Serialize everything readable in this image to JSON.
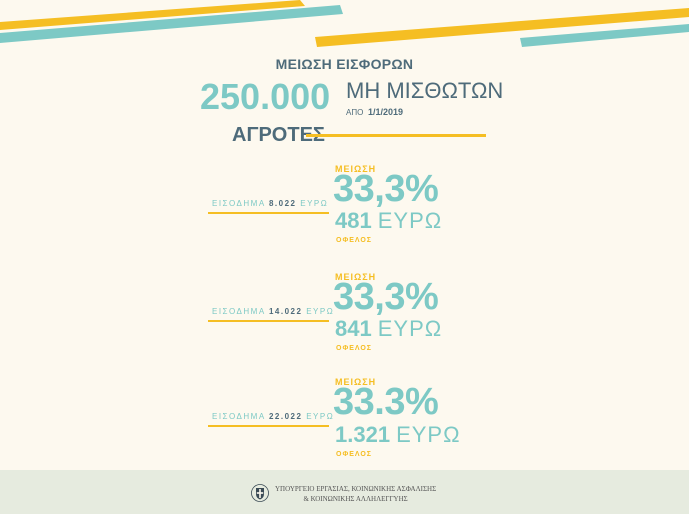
{
  "colors": {
    "teal": "#7dc9c5",
    "yellow": "#f5be23",
    "slate": "#4e6b7a",
    "background": "#fdf9ef",
    "footer": "#e6ebdf"
  },
  "header": {
    "title": "ΜΕΙΩΣΗ ΕΙΣΦΟΡΩΝ",
    "count": "250.000",
    "subtitle": "ΜΗ ΜΙΣΘΩΤΩΝ",
    "date_prefix": "ΑΠΟ",
    "date": "1/1/2019",
    "section": "ΑΓΡΟΤΕΣ"
  },
  "blocks": [
    {
      "reduction_label": "ΜΕΙΩΣΗ",
      "income_label": "ΕΙΣΟΔΗΜΑ",
      "income_value": "8.022",
      "income_unit": "ΕΥΡΩ",
      "percent": "33,3%",
      "amount": "481",
      "amount_unit": "ΕΥΡΩ",
      "benefit_label": "ΟΦΕΛΟΣ"
    },
    {
      "reduction_label": "ΜΕΙΩΣΗ",
      "income_label": "ΕΙΣΟΔΗΜΑ",
      "income_value": "14.022",
      "income_unit": "ΕΥΡΩ",
      "percent": "33,3%",
      "amount": "841",
      "amount_unit": "ΕΥΡΩ",
      "benefit_label": "ΟΦΕΛΟΣ"
    },
    {
      "reduction_label": "ΜΕΙΩΣΗ",
      "income_label": "ΕΙΣΟΔΗΜΑ",
      "income_value": "22.022",
      "income_unit": "ΕΥΡΩ",
      "percent": "33.3%",
      "amount": "1.321",
      "amount_unit": "ΕΥΡΩ",
      "benefit_label": "ΟΦΕΛΟΣ"
    }
  ],
  "footer": {
    "emblem_icon": "greek-coat-of-arms-icon",
    "ministry_line1": "ΥΠΟΥΡΓΕΙΟ ΕΡΓΑΣΙΑΣ, ΚΟΙΝΩΝΙΚΗΣ ΑΣΦΑΛΙΣΗΣ",
    "ministry_line2": "& ΚΟΙΝΩΝΙΚΗΣ ΑΛΛΗΛΕΓΓΥΗΣ"
  }
}
